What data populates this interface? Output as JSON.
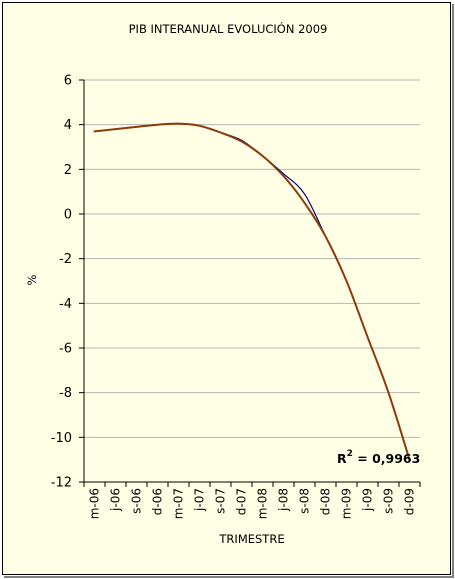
{
  "chart_data": {
    "type": "line",
    "title": "PIB INTERANUAL EVOLUCIÓN 2009",
    "xlabel": "TRIMESTRE",
    "ylabel": "%",
    "categories": [
      "m-06",
      "j-06",
      "s-06",
      "d-06",
      "m-07",
      "j-07",
      "s-07",
      "d-07",
      "m-08",
      "j-08",
      "s-08",
      "d-08",
      "m-09",
      "j-09",
      "s-09",
      "d-09"
    ],
    "ylim": [
      -12,
      6
    ],
    "yticks": [
      6,
      4,
      2,
      0,
      -2,
      -4,
      -6,
      -8,
      -10,
      -12
    ],
    "grid": true,
    "series": [
      {
        "kind": "observed",
        "color": "#000080",
        "values": [
          3.7,
          3.8,
          3.9,
          4.0,
          4.05,
          3.95,
          3.65,
          3.3,
          2.6,
          1.8,
          0.9,
          -1.0,
          -3.0,
          -5.5,
          -8.0,
          -11.0
        ]
      },
      {
        "kind": "trendline",
        "color": "#8b3a0a",
        "values": [
          3.7,
          3.8,
          3.9,
          4.0,
          4.05,
          3.95,
          3.65,
          3.25,
          2.6,
          1.7,
          0.5,
          -1.0,
          -3.0,
          -5.5,
          -8.0,
          -11.0
        ]
      }
    ],
    "annotations": [
      {
        "prefix": "R",
        "superscript": "2",
        "text": " = 0,9963"
      }
    ]
  }
}
